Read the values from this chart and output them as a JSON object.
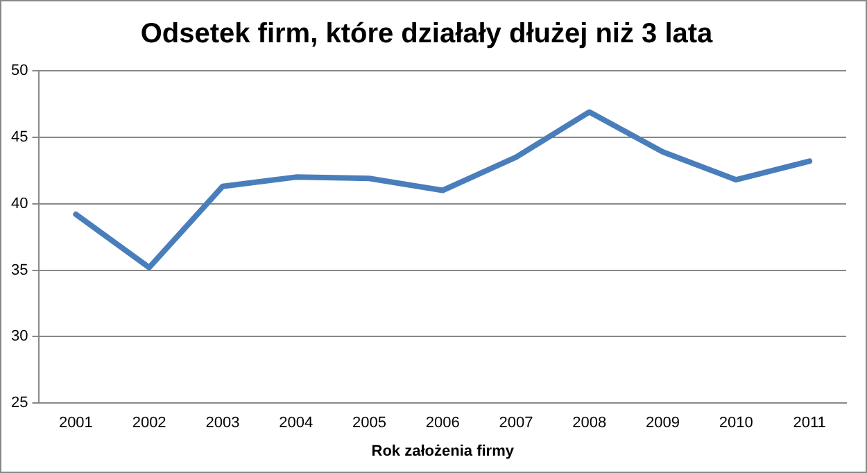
{
  "chart_data": {
    "type": "line",
    "title": "Odsetek firm, które działały dłużej niż 3 lata",
    "xlabel": "Rok założenia firmy",
    "categories": [
      "2001",
      "2002",
      "2003",
      "2004",
      "2005",
      "2006",
      "2007",
      "2008",
      "2009",
      "2010",
      "2011"
    ],
    "series": [
      {
        "color": "#4a7ebb",
        "values": [
          39.2,
          35.2,
          41.3,
          42.0,
          41.9,
          41.0,
          43.5,
          46.9,
          43.9,
          41.8,
          43.2
        ]
      }
    ],
    "ylim": [
      25,
      50
    ],
    "yticks": [
      25,
      30,
      35,
      40,
      45,
      50
    ],
    "grid": "y",
    "legend": false,
    "marker": "none",
    "line_style": "solid"
  }
}
